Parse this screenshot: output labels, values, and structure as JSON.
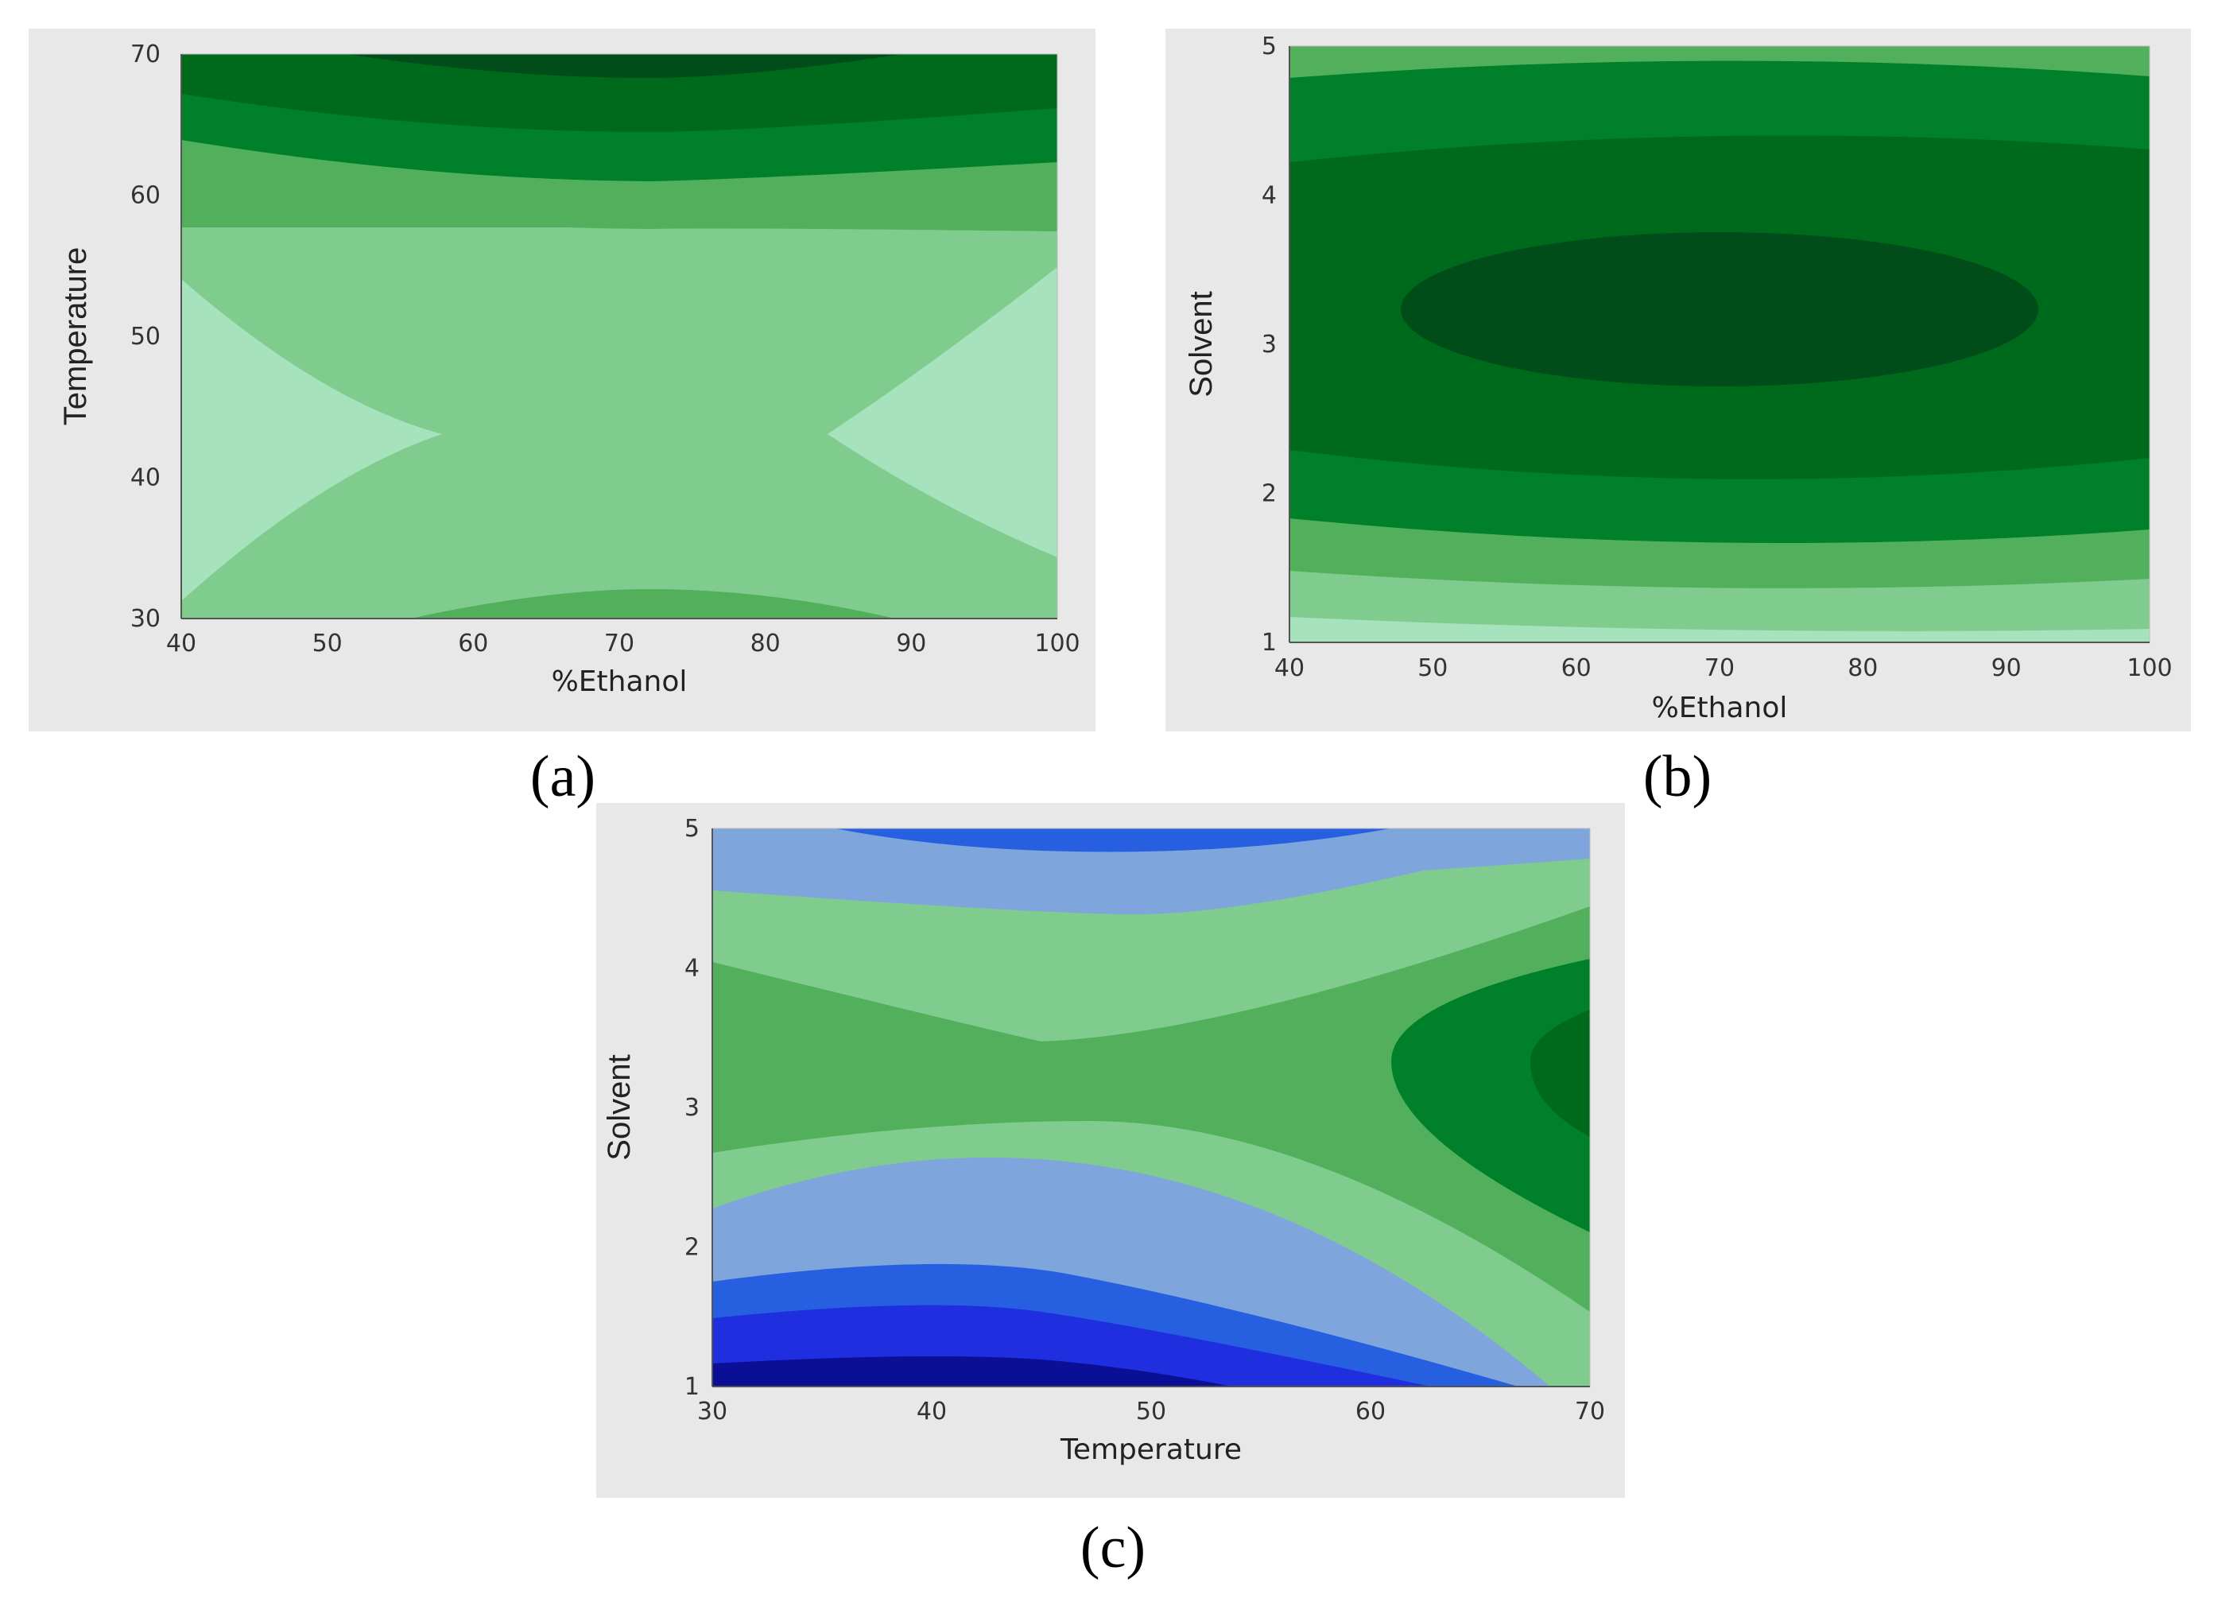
{
  "captions": [
    "(a)",
    "(b)",
    "(c)"
  ],
  "palette": {
    "panel_bg": "#e8e8e8",
    "green_levels": [
      "#a6e3bc",
      "#80cc8e",
      "#52b05d",
      "#2f9a3c",
      "#00802b",
      "#006a1c",
      "#004d19"
    ],
    "blue_levels": [
      "#0b0f96",
      "#1f2fe0",
      "#2660e0",
      "#7ea6dc"
    ]
  },
  "chart_data": [
    {
      "type": "heatmap",
      "subtype": "contour",
      "caption": "(a)",
      "xlabel": "%Ethanol",
      "ylabel": "Temperature",
      "xlim": [
        40,
        100
      ],
      "ylim": [
        30,
        70
      ],
      "xticks": [
        "40",
        "50",
        "60",
        "70",
        "80",
        "90",
        "100"
      ],
      "yticks": [
        "30",
        "40",
        "50",
        "60",
        "70"
      ],
      "description_of_levels": "lightest near x=40 and x=100 at y≈45; darker bands toward y=70; darkest at top around x≈70",
      "center": [
        68,
        44
      ],
      "ridge": "saddle: higher values at top (70) and bottom (30), lower at left/right edges near 45"
    },
    {
      "type": "heatmap",
      "subtype": "contour",
      "caption": "(b)",
      "xlabel": "%Ethanol",
      "ylabel": "Solvent",
      "xlim": [
        40,
        100
      ],
      "ylim": [
        1,
        5
      ],
      "xticks": [
        "40",
        "50",
        "60",
        "70",
        "80",
        "90",
        "100"
      ],
      "yticks": [
        "1",
        "2",
        "3",
        "4",
        "5"
      ],
      "maximum": [
        69,
        3.25
      ]
    },
    {
      "type": "heatmap",
      "subtype": "contour",
      "caption": "(c)",
      "xlabel": "Temperature",
      "ylabel": "Solvent",
      "xlim": [
        30,
        70
      ],
      "ylim": [
        1,
        5
      ],
      "xticks": [
        "30",
        "40",
        "50",
        "60",
        "70"
      ],
      "yticks": [
        "1",
        "2",
        "3",
        "4",
        "5"
      ],
      "maximum": [
        70,
        3.1
      ],
      "minimum": [
        40,
        1.0
      ]
    }
  ]
}
